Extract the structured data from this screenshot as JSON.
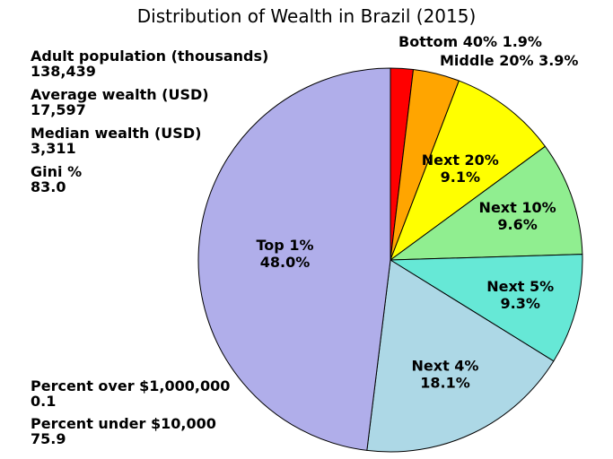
{
  "chart_data": {
    "type": "pie",
    "title": "Distribution of Wealth in Brazil (2015)",
    "slices": [
      {
        "label": "Bottom 40%",
        "value": 1.9,
        "display": "1.9%",
        "color": "#ff0000"
      },
      {
        "label": "Middle 20%",
        "value": 3.9,
        "display": "3.9%",
        "color": "#ffa500"
      },
      {
        "label": "Next 20%",
        "value": 9.1,
        "display": "9.1%",
        "color": "#ffff00"
      },
      {
        "label": "Next 10%",
        "value": 9.6,
        "display": "9.6%",
        "color": "#90ee90"
      },
      {
        "label": "Next 5%",
        "value": 9.3,
        "display": "9.3%",
        "color": "#66e8d6"
      },
      {
        "label": "Next 4%",
        "value": 18.1,
        "display": "18.1%",
        "color": "#add8e6"
      },
      {
        "label": "Top 1%",
        "value": 48.0,
        "display": "48.0%",
        "color": "#b0aeea"
      }
    ],
    "start_angle": "12 o'clock",
    "direction": "clockwise"
  },
  "stats": {
    "adult_population": {
      "label": "Adult population (thousands)",
      "value": "138,439"
    },
    "average_wealth": {
      "label": "Average wealth (USD)",
      "value": "17,597"
    },
    "median_wealth": {
      "label": "Median wealth (USD)",
      "value": "3,311"
    },
    "gini": {
      "label": "Gini %",
      "value": "83.0"
    },
    "percent_over_million": {
      "label": "Percent over $1,000,000",
      "value": "0.1"
    },
    "percent_under_10000": {
      "label": "Percent under $10,000",
      "value": "75.9"
    }
  }
}
